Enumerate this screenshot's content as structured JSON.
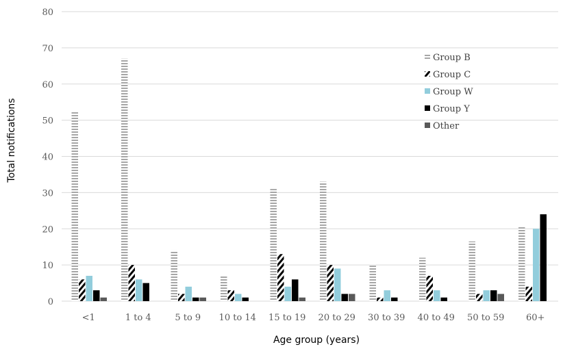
{
  "chart_data": {
    "type": "bar",
    "title": "",
    "xlabel": "Age group (years)",
    "ylabel": "Total notifications",
    "ylim": [
      0,
      80
    ],
    "yticks": [
      0,
      10,
      20,
      30,
      40,
      50,
      60,
      70,
      80
    ],
    "grid": true,
    "legend_position": "top-right",
    "categories": [
      "<1",
      "1 to 4",
      "5 to 9",
      "10 to 14",
      "15 to 19",
      "20 to 29",
      "30 to 39",
      "40 to 49",
      "50 to 59",
      "60+"
    ],
    "series": [
      {
        "name": "Group B",
        "values": [
          52.5,
          67,
          14,
          7,
          31,
          33,
          10,
          12,
          16.5,
          20.5
        ],
        "color": "#a6a6a6",
        "pattern": "horizontal-stripes"
      },
      {
        "name": "Group C",
        "values": [
          6,
          10,
          2,
          3,
          13,
          10,
          1,
          7,
          2,
          4
        ],
        "color": "#000000",
        "pattern": "diagonal-stripes"
      },
      {
        "name": "Group W",
        "values": [
          7,
          6,
          4,
          2,
          4,
          9,
          3,
          3,
          3,
          20
        ],
        "color": "#92cddc",
        "pattern": "solid"
      },
      {
        "name": "Group Y",
        "values": [
          3,
          5,
          1,
          1,
          6,
          2,
          1,
          1,
          3,
          24
        ],
        "color": "#000000",
        "pattern": "solid"
      },
      {
        "name": "Other",
        "values": [
          1,
          0,
          1,
          0,
          1,
          2,
          0,
          0,
          2,
          0
        ],
        "color": "#595959",
        "pattern": "solid"
      }
    ]
  }
}
